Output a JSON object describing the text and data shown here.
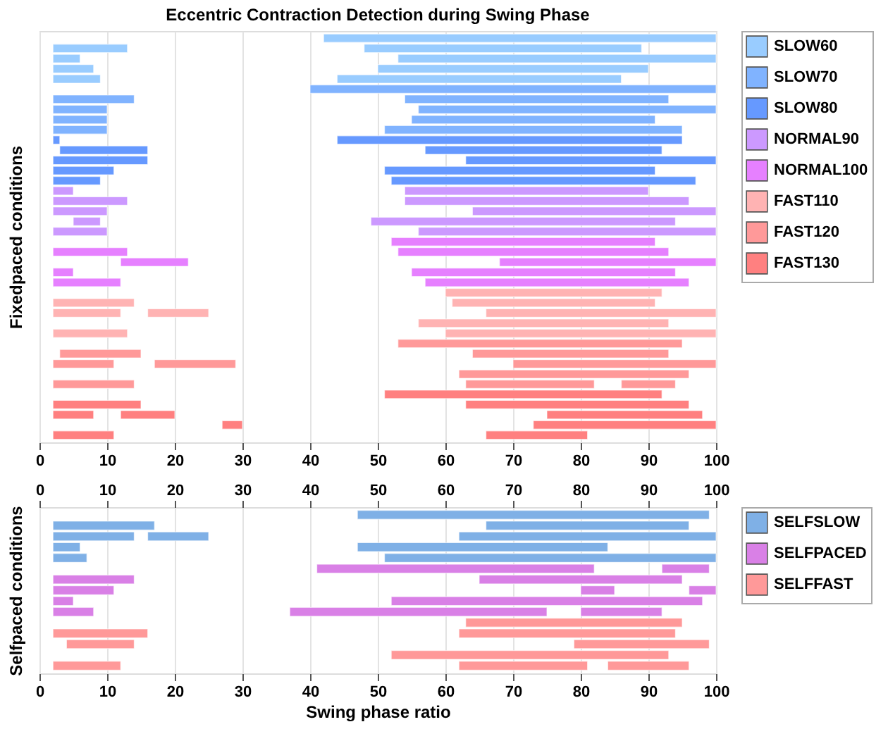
{
  "chart_data": [
    {
      "type": "bar",
      "orientation": "horizontal",
      "title": "Eccentric Contraction Detection during Swing Phase",
      "ylabel": "Fixedpaced conditions",
      "xlim": [
        0,
        100
      ],
      "xticks": [
        0,
        10,
        20,
        30,
        40,
        50,
        60,
        70,
        80,
        90,
        100
      ],
      "grid": "x",
      "legend": "right",
      "categories": [
        null,
        null,
        null,
        null,
        null,
        null,
        null,
        null,
        null,
        null,
        null,
        null,
        null,
        null,
        null,
        null,
        null,
        null,
        null,
        null,
        null,
        null,
        null,
        null,
        null,
        null,
        null,
        null,
        null,
        null,
        null,
        null,
        null,
        null,
        null,
        null,
        null,
        null,
        null,
        null
      ],
      "series": [
        {
          "name": "SLOW60",
          "color": "#99ccff",
          "base": [
            null,
            2,
            2,
            2,
            2,
            null,
            null,
            null,
            null,
            null,
            null,
            null,
            null,
            null,
            null,
            null,
            null,
            null,
            null,
            null,
            null,
            null,
            null,
            null,
            null,
            null,
            null,
            null,
            null,
            null,
            null,
            null,
            null,
            null,
            null,
            null,
            null,
            null,
            null,
            null
          ],
          "values": [
            null,
            11,
            4,
            6,
            7,
            null,
            null,
            null,
            null,
            null,
            null,
            null,
            null,
            null,
            null,
            null,
            null,
            null,
            null,
            null,
            null,
            null,
            null,
            null,
            null,
            null,
            null,
            null,
            null,
            null,
            null,
            null,
            null,
            null,
            null,
            null,
            null,
            null,
            null,
            null
          ]
        },
        {
          "color": "#99ccff",
          "base": [
            42,
            48,
            53,
            50,
            44,
            null,
            null,
            null,
            null,
            null,
            null,
            null,
            null,
            null,
            null,
            null,
            null,
            null,
            null,
            null,
            null,
            null,
            null,
            null,
            null,
            null,
            null,
            null,
            null,
            null,
            null,
            null,
            null,
            null,
            null,
            null,
            null,
            null,
            null,
            null
          ],
          "values": [
            58,
            41,
            47,
            40,
            42,
            null,
            null,
            null,
            null,
            null,
            null,
            null,
            null,
            null,
            null,
            null,
            null,
            null,
            null,
            null,
            null,
            null,
            null,
            null,
            null,
            null,
            null,
            null,
            null,
            null,
            null,
            null,
            null,
            null,
            null,
            null,
            null,
            null,
            null,
            null
          ]
        },
        {
          "name": "SLOW70",
          "color": "#80b3ff",
          "base": [
            null,
            null,
            null,
            null,
            null,
            null,
            2,
            2,
            2,
            2,
            null,
            null,
            null,
            null,
            null,
            null,
            null,
            null,
            null,
            null,
            null,
            null,
            null,
            null,
            null,
            null,
            null,
            null,
            null,
            null,
            null,
            null,
            null,
            null,
            null,
            null,
            null,
            null,
            null,
            null
          ],
          "values": [
            null,
            null,
            null,
            null,
            null,
            null,
            12,
            8,
            8,
            8,
            null,
            null,
            null,
            null,
            null,
            null,
            null,
            null,
            null,
            null,
            null,
            null,
            null,
            null,
            null,
            null,
            null,
            null,
            null,
            null,
            null,
            null,
            null,
            null,
            null,
            null,
            null,
            null,
            null,
            null
          ]
        },
        {
          "color": "#80b3ff",
          "base": [
            null,
            null,
            null,
            null,
            null,
            40,
            54,
            56,
            55,
            51,
            null,
            null,
            null,
            null,
            null,
            null,
            null,
            null,
            null,
            null,
            null,
            null,
            null,
            null,
            null,
            null,
            null,
            null,
            null,
            null,
            null,
            null,
            null,
            null,
            null,
            null,
            null,
            null,
            null,
            null
          ],
          "values": [
            null,
            null,
            null,
            null,
            null,
            60,
            39,
            44,
            36,
            44,
            null,
            null,
            null,
            null,
            null,
            null,
            null,
            null,
            null,
            null,
            null,
            null,
            null,
            null,
            null,
            null,
            null,
            null,
            null,
            null,
            null,
            null,
            null,
            null,
            null,
            null,
            null,
            null,
            null,
            null
          ]
        },
        {
          "name": "SLOW80",
          "color": "#6699ff",
          "base": [
            null,
            null,
            null,
            null,
            null,
            null,
            null,
            null,
            null,
            null,
            2,
            3,
            2,
            2,
            2,
            null,
            null,
            null,
            null,
            null,
            null,
            null,
            null,
            null,
            null,
            null,
            null,
            null,
            null,
            null,
            null,
            null,
            null,
            null,
            null,
            null,
            null,
            null,
            null,
            null
          ],
          "values": [
            null,
            null,
            null,
            null,
            null,
            null,
            null,
            null,
            null,
            null,
            1,
            13,
            14,
            9,
            7,
            null,
            null,
            null,
            null,
            null,
            null,
            null,
            null,
            null,
            null,
            null,
            null,
            null,
            null,
            null,
            null,
            null,
            null,
            null,
            null,
            null,
            null,
            null,
            null,
            null
          ]
        },
        {
          "color": "#6699ff",
          "base": [
            null,
            null,
            null,
            null,
            null,
            null,
            null,
            null,
            null,
            null,
            44,
            57,
            63,
            51,
            52,
            null,
            null,
            null,
            null,
            null,
            null,
            null,
            null,
            null,
            null,
            null,
            null,
            null,
            null,
            null,
            null,
            null,
            null,
            null,
            null,
            null,
            null,
            null,
            null,
            null
          ],
          "values": [
            null,
            null,
            null,
            null,
            null,
            null,
            null,
            null,
            null,
            null,
            51,
            35,
            37,
            40,
            45,
            null,
            null,
            null,
            null,
            null,
            null,
            null,
            null,
            null,
            null,
            null,
            null,
            null,
            null,
            null,
            null,
            null,
            null,
            null,
            null,
            null,
            null,
            null,
            null,
            null
          ]
        },
        {
          "name": "NORMAL90",
          "color": "#cc99ff",
          "base": [
            null,
            null,
            null,
            null,
            null,
            null,
            null,
            null,
            null,
            null,
            null,
            null,
            null,
            null,
            null,
            2,
            2,
            2,
            5,
            2,
            null,
            null,
            null,
            null,
            null,
            null,
            null,
            null,
            null,
            null,
            null,
            null,
            null,
            null,
            null,
            null,
            null,
            null,
            null,
            null
          ],
          "values": [
            null,
            null,
            null,
            null,
            null,
            null,
            null,
            null,
            null,
            null,
            null,
            null,
            null,
            null,
            null,
            3,
            11,
            8,
            4,
            8,
            null,
            null,
            null,
            null,
            null,
            null,
            null,
            null,
            null,
            null,
            null,
            null,
            null,
            null,
            null,
            null,
            null,
            null,
            null,
            null
          ]
        },
        {
          "color": "#cc99ff",
          "base": [
            null,
            null,
            null,
            null,
            null,
            null,
            null,
            null,
            null,
            null,
            null,
            null,
            null,
            null,
            null,
            54,
            54,
            64,
            49,
            56,
            null,
            null,
            null,
            null,
            null,
            null,
            null,
            null,
            null,
            null,
            null,
            null,
            null,
            null,
            null,
            null,
            null,
            null,
            null,
            null
          ],
          "values": [
            null,
            null,
            null,
            null,
            null,
            null,
            null,
            null,
            null,
            null,
            null,
            null,
            null,
            null,
            null,
            36,
            42,
            36,
            45,
            44,
            null,
            null,
            null,
            null,
            null,
            null,
            null,
            null,
            null,
            null,
            null,
            null,
            null,
            null,
            null,
            null,
            null,
            null,
            null,
            null
          ]
        },
        {
          "name": "NORMAL100",
          "color": "#e680ff",
          "base": [
            null,
            null,
            null,
            null,
            null,
            null,
            null,
            null,
            null,
            null,
            null,
            null,
            null,
            null,
            null,
            null,
            null,
            null,
            null,
            null,
            null,
            2,
            12,
            2,
            2,
            null,
            null,
            null,
            null,
            null,
            null,
            null,
            null,
            null,
            null,
            null,
            null,
            null,
            null,
            null
          ],
          "values": [
            null,
            null,
            null,
            null,
            null,
            null,
            null,
            null,
            null,
            null,
            null,
            null,
            null,
            null,
            null,
            null,
            null,
            null,
            null,
            null,
            null,
            11,
            10,
            3,
            10,
            null,
            null,
            null,
            null,
            null,
            null,
            null,
            null,
            null,
            null,
            null,
            null,
            null,
            null,
            null
          ]
        },
        {
          "color": "#e680ff",
          "base": [
            null,
            null,
            null,
            null,
            null,
            null,
            null,
            null,
            null,
            null,
            null,
            null,
            null,
            null,
            null,
            null,
            null,
            null,
            null,
            null,
            52,
            53,
            68,
            55,
            57,
            null,
            null,
            null,
            null,
            null,
            null,
            null,
            null,
            null,
            null,
            null,
            null,
            null,
            null,
            null
          ],
          "values": [
            null,
            null,
            null,
            null,
            null,
            null,
            null,
            null,
            null,
            null,
            null,
            null,
            null,
            null,
            null,
            null,
            null,
            null,
            null,
            null,
            39,
            40,
            32,
            39,
            39,
            null,
            null,
            null,
            null,
            null,
            null,
            null,
            null,
            null,
            null,
            null,
            null,
            null,
            null,
            null
          ]
        },
        {
          "name": "FAST110",
          "color": "#ffb3b3",
          "base": [
            null,
            null,
            null,
            null,
            null,
            null,
            null,
            null,
            null,
            null,
            null,
            null,
            null,
            null,
            null,
            null,
            null,
            null,
            null,
            null,
            null,
            null,
            null,
            null,
            null,
            null,
            2,
            2,
            null,
            2,
            null,
            null,
            null,
            null,
            null,
            null,
            null,
            null,
            null,
            null
          ],
          "values": [
            null,
            null,
            null,
            null,
            null,
            null,
            null,
            null,
            null,
            null,
            null,
            null,
            null,
            null,
            null,
            null,
            null,
            null,
            null,
            null,
            null,
            null,
            null,
            null,
            null,
            null,
            12,
            10,
            null,
            11,
            null,
            null,
            null,
            null,
            null,
            null,
            null,
            null,
            null,
            null
          ]
        },
        {
          "color": "#ffb3b3",
          "base": [
            null,
            null,
            null,
            null,
            null,
            null,
            null,
            null,
            null,
            null,
            null,
            null,
            null,
            null,
            null,
            null,
            null,
            null,
            null,
            null,
            null,
            null,
            null,
            null,
            null,
            60,
            61,
            66,
            56,
            60,
            null,
            null,
            null,
            null,
            null,
            null,
            null,
            null,
            null,
            null
          ],
          "values": [
            null,
            null,
            null,
            null,
            null,
            null,
            null,
            null,
            null,
            null,
            null,
            null,
            null,
            null,
            null,
            null,
            null,
            null,
            null,
            null,
            null,
            null,
            null,
            null,
            null,
            32,
            30,
            34,
            37,
            40,
            null,
            null,
            null,
            null,
            null,
            null,
            null,
            null,
            null,
            null
          ]
        },
        {
          "color": "#ffb3b3",
          "base": [
            null,
            null,
            null,
            null,
            null,
            null,
            null,
            null,
            null,
            null,
            null,
            null,
            null,
            null,
            null,
            null,
            null,
            null,
            null,
            null,
            null,
            null,
            null,
            null,
            null,
            null,
            null,
            16,
            null,
            null,
            null,
            null,
            null,
            null,
            null,
            null,
            null,
            null,
            null,
            null
          ],
          "values": [
            null,
            null,
            null,
            null,
            null,
            null,
            null,
            null,
            null,
            null,
            null,
            null,
            null,
            null,
            null,
            null,
            null,
            null,
            null,
            null,
            null,
            null,
            null,
            null,
            null,
            null,
            null,
            9,
            null,
            null,
            null,
            null,
            null,
            null,
            null,
            null,
            null,
            null,
            null,
            null
          ]
        },
        {
          "name": "FAST120",
          "color": "#ff9999",
          "base": [
            null,
            null,
            null,
            null,
            null,
            null,
            null,
            null,
            null,
            null,
            null,
            null,
            null,
            null,
            null,
            null,
            null,
            null,
            null,
            null,
            null,
            null,
            null,
            null,
            null,
            null,
            null,
            null,
            null,
            null,
            null,
            3,
            2,
            null,
            2,
            null,
            null,
            null,
            null,
            null
          ],
          "values": [
            null,
            null,
            null,
            null,
            null,
            null,
            null,
            null,
            null,
            null,
            null,
            null,
            null,
            null,
            null,
            null,
            null,
            null,
            null,
            null,
            null,
            null,
            null,
            null,
            null,
            null,
            null,
            null,
            null,
            null,
            null,
            12,
            9,
            null,
            12,
            null,
            null,
            null,
            null,
            null
          ]
        },
        {
          "color": "#ff9999",
          "base": [
            null,
            null,
            null,
            null,
            null,
            null,
            null,
            null,
            null,
            null,
            null,
            null,
            null,
            null,
            null,
            null,
            null,
            null,
            null,
            null,
            null,
            null,
            null,
            null,
            null,
            null,
            null,
            null,
            null,
            null,
            53,
            64,
            70,
            62,
            63,
            null,
            null,
            null,
            null,
            null
          ],
          "values": [
            null,
            null,
            null,
            null,
            null,
            null,
            null,
            null,
            null,
            null,
            null,
            null,
            null,
            null,
            null,
            null,
            null,
            null,
            null,
            null,
            null,
            null,
            null,
            null,
            null,
            null,
            null,
            null,
            null,
            null,
            42,
            29,
            30,
            34,
            19,
            null,
            null,
            null,
            null,
            null
          ]
        },
        {
          "color": "#ff9999",
          "base": [
            null,
            null,
            null,
            null,
            null,
            null,
            null,
            null,
            null,
            null,
            null,
            null,
            null,
            null,
            null,
            null,
            null,
            null,
            null,
            null,
            null,
            null,
            null,
            null,
            null,
            null,
            null,
            null,
            null,
            null,
            null,
            null,
            17,
            null,
            86,
            null,
            null,
            null,
            null,
            null
          ],
          "values": [
            null,
            null,
            null,
            null,
            null,
            null,
            null,
            null,
            null,
            null,
            null,
            null,
            null,
            null,
            null,
            null,
            null,
            null,
            null,
            null,
            null,
            null,
            null,
            null,
            null,
            null,
            null,
            null,
            null,
            null,
            null,
            null,
            12,
            null,
            8,
            null,
            null,
            null,
            null,
            null
          ]
        },
        {
          "name": "FAST130",
          "color": "#ff8080",
          "base": [
            null,
            null,
            null,
            null,
            null,
            null,
            null,
            null,
            null,
            null,
            null,
            null,
            null,
            null,
            null,
            null,
            null,
            null,
            null,
            null,
            null,
            null,
            null,
            null,
            null,
            null,
            null,
            null,
            null,
            null,
            null,
            null,
            null,
            null,
            null,
            null,
            2,
            2,
            27,
            2
          ],
          "values": [
            null,
            null,
            null,
            null,
            null,
            null,
            null,
            null,
            null,
            null,
            null,
            null,
            null,
            null,
            null,
            null,
            null,
            null,
            null,
            null,
            null,
            null,
            null,
            null,
            null,
            null,
            null,
            null,
            null,
            null,
            null,
            null,
            null,
            null,
            null,
            null,
            13,
            6,
            3,
            9
          ]
        },
        {
          "color": "#ff8080",
          "base": [
            null,
            null,
            null,
            null,
            null,
            null,
            null,
            null,
            null,
            null,
            null,
            null,
            null,
            null,
            null,
            null,
            null,
            null,
            null,
            null,
            null,
            null,
            null,
            null,
            null,
            null,
            null,
            null,
            null,
            null,
            null,
            null,
            null,
            null,
            null,
            51,
            63,
            75,
            73,
            66
          ],
          "values": [
            null,
            null,
            null,
            null,
            null,
            null,
            null,
            null,
            null,
            null,
            null,
            null,
            null,
            null,
            null,
            null,
            null,
            null,
            null,
            null,
            null,
            null,
            null,
            null,
            null,
            null,
            null,
            null,
            null,
            null,
            null,
            null,
            null,
            null,
            null,
            41,
            33,
            23,
            27,
            15
          ]
        },
        {
          "color": "#ff8080",
          "base": [
            null,
            null,
            null,
            null,
            null,
            null,
            null,
            null,
            null,
            null,
            null,
            null,
            null,
            null,
            null,
            null,
            null,
            null,
            null,
            null,
            null,
            null,
            null,
            null,
            null,
            null,
            null,
            null,
            null,
            null,
            null,
            null,
            null,
            null,
            null,
            null,
            null,
            12,
            null,
            null
          ],
          "values": [
            null,
            null,
            null,
            null,
            null,
            null,
            null,
            null,
            null,
            null,
            null,
            null,
            null,
            null,
            null,
            null,
            null,
            null,
            null,
            null,
            null,
            null,
            null,
            null,
            null,
            null,
            null,
            null,
            null,
            null,
            null,
            null,
            null,
            null,
            null,
            null,
            null,
            8,
            null,
            null
          ]
        }
      ]
    },
    {
      "type": "bar",
      "orientation": "horizontal",
      "ylabel": "Selfpaced conditions",
      "xlabel": "Swing phase ratio",
      "xlim": [
        0,
        100
      ],
      "xticks": [
        0,
        10,
        20,
        30,
        40,
        50,
        60,
        70,
        80,
        90,
        100
      ],
      "x2lim": [
        0,
        100
      ],
      "x2ticks": [
        0,
        10,
        20,
        30,
        40,
        50,
        60,
        70,
        80,
        90,
        100
      ],
      "grid": "x",
      "legend": "right",
      "categories": [
        null,
        null,
        null,
        null,
        null,
        null,
        null,
        null,
        null,
        null,
        null,
        null,
        null,
        null,
        null
      ],
      "series": [
        {
          "name": "SELFSLOW",
          "color": "#7fb0e6",
          "base": [
            null,
            2,
            2,
            2,
            2,
            null,
            null,
            null,
            null,
            null,
            null,
            null,
            null,
            null,
            null
          ],
          "values": [
            null,
            15,
            12,
            4,
            5,
            null,
            null,
            null,
            null,
            null,
            null,
            null,
            null,
            null,
            null
          ]
        },
        {
          "color": "#7fb0e6",
          "base": [
            47,
            66,
            62,
            47,
            51,
            null,
            null,
            null,
            null,
            null,
            null,
            null,
            null,
            null,
            null
          ],
          "values": [
            52,
            30,
            38,
            37,
            49,
            null,
            null,
            null,
            null,
            null,
            null,
            null,
            null,
            null,
            null
          ]
        },
        {
          "color": "#7fb0e6",
          "base": [
            null,
            null,
            16,
            null,
            null,
            null,
            null,
            null,
            null,
            null,
            null,
            null,
            null,
            null,
            null
          ],
          "values": [
            null,
            null,
            9,
            null,
            null,
            null,
            null,
            null,
            null,
            null,
            null,
            null,
            null,
            null,
            null
          ]
        },
        {
          "name": "SELFPACED",
          "color": "#d980e6",
          "base": [
            null,
            null,
            null,
            null,
            null,
            null,
            2,
            2,
            2,
            2,
            null,
            null,
            null,
            null,
            null
          ],
          "values": [
            null,
            null,
            null,
            null,
            null,
            null,
            12,
            9,
            3,
            6,
            null,
            null,
            null,
            null,
            null
          ]
        },
        {
          "color": "#d980e6",
          "base": [
            null,
            null,
            null,
            null,
            null,
            41,
            65,
            80,
            52,
            37,
            null,
            null,
            null,
            null,
            null
          ],
          "values": [
            null,
            null,
            null,
            null,
            null,
            41,
            30,
            5,
            46,
            38,
            null,
            null,
            null,
            null,
            null
          ]
        },
        {
          "color": "#d980e6",
          "base": [
            null,
            null,
            null,
            null,
            null,
            92,
            null,
            96,
            null,
            80,
            null,
            null,
            null,
            null,
            null
          ],
          "values": [
            null,
            null,
            null,
            null,
            null,
            7,
            null,
            4,
            null,
            12,
            null,
            null,
            null,
            null,
            null
          ]
        },
        {
          "name": "SELFFAST",
          "color": "#ff9999",
          "base": [
            null,
            null,
            null,
            null,
            null,
            null,
            null,
            null,
            null,
            null,
            null,
            2,
            4,
            null,
            2
          ],
          "values": [
            null,
            null,
            null,
            null,
            null,
            null,
            null,
            null,
            null,
            null,
            null,
            14,
            10,
            null,
            10
          ]
        },
        {
          "color": "#ff9999",
          "base": [
            null,
            null,
            null,
            null,
            null,
            null,
            null,
            null,
            null,
            null,
            63,
            62,
            79,
            52,
            62
          ],
          "values": [
            null,
            null,
            null,
            null,
            null,
            null,
            null,
            null,
            null,
            null,
            32,
            32,
            20,
            41,
            19
          ]
        },
        {
          "color": "#ff9999",
          "base": [
            null,
            null,
            null,
            null,
            null,
            null,
            null,
            null,
            null,
            null,
            null,
            null,
            null,
            null,
            84
          ],
          "values": [
            null,
            null,
            null,
            null,
            null,
            null,
            null,
            null,
            null,
            null,
            null,
            null,
            null,
            null,
            12
          ]
        }
      ]
    }
  ]
}
